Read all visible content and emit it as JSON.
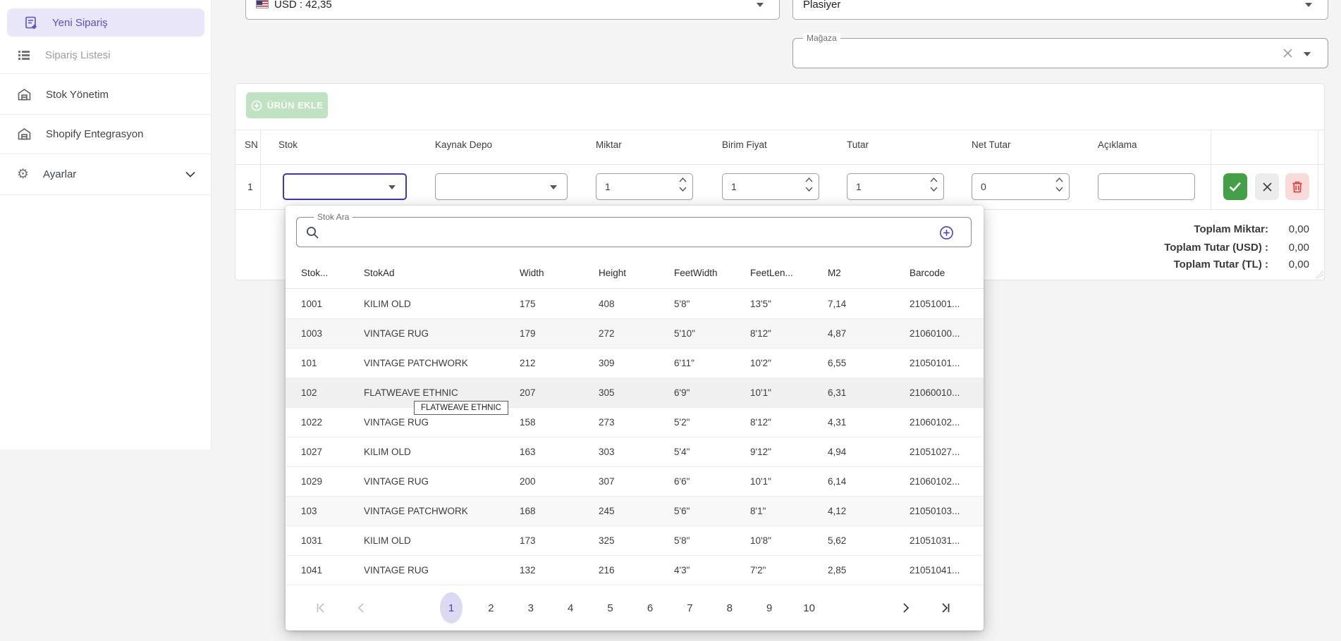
{
  "sidebar": {
    "items": [
      {
        "label": "Yeni Sipariş",
        "active": true
      },
      {
        "label": "Sipariş Listesi",
        "active": false
      },
      {
        "label": "Stok Yönetim",
        "active": false
      },
      {
        "label": "Shopify Entegrasyon",
        "active": false
      },
      {
        "label": "Ayarlar",
        "active": false
      }
    ]
  },
  "topbar": {
    "currency": {
      "value": "USD : 42,35"
    },
    "plasiyer": {
      "value": "Plasiyer"
    },
    "magaza": {
      "label": "Mağaza",
      "value": ""
    }
  },
  "order_form": {
    "add_button_label": "ÜRÜN EKLE",
    "columns": [
      "SN",
      "Stok",
      "Kaynak Depo",
      "Miktar",
      "Birim Fiyat",
      "Tutar",
      "Net Tutar",
      "Açıklama"
    ],
    "row": {
      "sn": "1",
      "stok": "",
      "kaynak_depo": "",
      "miktar": "1",
      "birim_fiyat": "1",
      "tutar": "1",
      "net_tutar": "0",
      "aciklama": ""
    },
    "totals": [
      {
        "label": "Toplam Miktar:",
        "value": "0,00"
      },
      {
        "label": "Toplam Tutar (USD) :",
        "value": "0,00"
      },
      {
        "label": "Toplam Tutar (TL) :",
        "value": "0,00"
      }
    ]
  },
  "stock_dropdown": {
    "search_label": "Stok Ara",
    "columns": [
      "Stok...",
      "StokAd",
      "Width",
      "Height",
      "FeetWidth",
      "FeetLen...",
      "M2",
      "Barcode"
    ],
    "rows": [
      [
        "1001",
        "KILIM OLD",
        "175",
        "408",
        "5'8\"",
        "13'5\"",
        "7,14",
        "21051001..."
      ],
      [
        "1003",
        "VINTAGE RUG",
        "179",
        "272",
        "5'10\"",
        "8'12\"",
        "4,87",
        "21060100..."
      ],
      [
        "101",
        "VINTAGE PATCHWORK",
        "212",
        "309",
        "6'11\"",
        "10'2\"",
        "6,55",
        "21050101..."
      ],
      [
        "102",
        "FLATWEAVE ETHNIC",
        "207",
        "305",
        "6'9\"",
        "10'1\"",
        "6,31",
        "21060010..."
      ],
      [
        "1022",
        "VINTAGE RUG",
        "158",
        "273",
        "5'2\"",
        "8'12\"",
        "4,31",
        "21060102..."
      ],
      [
        "1027",
        "KILIM OLD",
        "163",
        "303",
        "5'4\"",
        "9'12\"",
        "4,94",
        "21051027..."
      ],
      [
        "1029",
        "VINTAGE RUG",
        "200",
        "307",
        "6'6\"",
        "10'1\"",
        "6,14",
        "21060102..."
      ],
      [
        "103",
        "VINTAGE PATCHWORK",
        "168",
        "245",
        "5'6\"",
        "8'1\"",
        "4,12",
        "21050103..."
      ],
      [
        "1031",
        "KILIM OLD",
        "173",
        "325",
        "5'8\"",
        "10'8\"",
        "5,62",
        "21051031..."
      ],
      [
        "1041",
        "VINTAGE RUG",
        "132",
        "216",
        "4'3\"",
        "7'2\"",
        "2,85",
        "21051041..."
      ]
    ],
    "tooltip": "FLATWEAVE ETHNIC",
    "pagination": {
      "pages": [
        "1",
        "2",
        "3",
        "4",
        "5",
        "6",
        "7",
        "8",
        "9",
        "10"
      ],
      "active": "1"
    }
  },
  "colors": {
    "accent": "#5a52c5",
    "accent_bg": "#e8e6f8",
    "focus_border": "#3d35c2",
    "confirm_green": "#43a047",
    "confirm_green_disabled": "#bfe3c1",
    "danger_red": "#e53935",
    "danger_bg": "#fbdada",
    "neutral_btn": "#ececec",
    "page_active_bg": "#dcd9f4"
  }
}
